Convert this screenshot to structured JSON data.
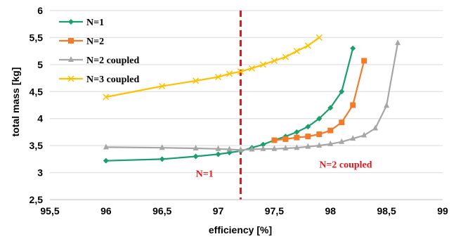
{
  "chart_data": {
    "type": "line",
    "xlabel": "efficiency [%]",
    "ylabel": "total mass [kg]",
    "xlim": [
      95.5,
      99
    ],
    "ylim": [
      2.5,
      6
    ],
    "xticks": [
      "95,5",
      "96",
      "96,5",
      "97",
      "97,5",
      "98",
      "98,5",
      "99"
    ],
    "yticks": [
      "2,5",
      "3",
      "3,5",
      "4",
      "4,5",
      "5",
      "5,5",
      "6"
    ],
    "grid": "horizontal",
    "legend_position": "top-left",
    "series": [
      {
        "name": "N=1",
        "color": "#1a9e6e",
        "marker": "diamond",
        "points": [
          [
            96.0,
            3.22
          ],
          [
            96.5,
            3.25
          ],
          [
            96.8,
            3.3
          ],
          [
            97.0,
            3.34
          ],
          [
            97.1,
            3.37
          ],
          [
            97.2,
            3.4
          ],
          [
            97.3,
            3.46
          ],
          [
            97.4,
            3.52
          ],
          [
            97.5,
            3.6
          ],
          [
            97.6,
            3.67
          ],
          [
            97.7,
            3.75
          ],
          [
            97.8,
            3.85
          ],
          [
            97.9,
            4.0
          ],
          [
            98.0,
            4.2
          ],
          [
            98.1,
            4.5
          ],
          [
            98.2,
            5.3
          ]
        ]
      },
      {
        "name": "N=2",
        "color": "#f07c2b",
        "marker": "square",
        "points": [
          [
            97.5,
            3.6
          ],
          [
            97.6,
            3.62
          ],
          [
            97.7,
            3.65
          ],
          [
            97.8,
            3.67
          ],
          [
            97.9,
            3.71
          ],
          [
            98.0,
            3.78
          ],
          [
            98.1,
            3.93
          ],
          [
            98.2,
            4.25
          ],
          [
            98.3,
            5.07
          ]
        ]
      },
      {
        "name": "N=2 coupled",
        "color": "#a6a6a6",
        "marker": "triangle",
        "points": [
          [
            96.0,
            3.47
          ],
          [
            96.5,
            3.46
          ],
          [
            96.8,
            3.45
          ],
          [
            97.0,
            3.44
          ],
          [
            97.1,
            3.43
          ],
          [
            97.2,
            3.42
          ],
          [
            97.3,
            3.43
          ],
          [
            97.4,
            3.44
          ],
          [
            97.5,
            3.44
          ],
          [
            97.6,
            3.45
          ],
          [
            97.7,
            3.46
          ],
          [
            97.8,
            3.48
          ],
          [
            97.9,
            3.5
          ],
          [
            98.0,
            3.53
          ],
          [
            98.1,
            3.57
          ],
          [
            98.2,
            3.63
          ],
          [
            98.3,
            3.69
          ],
          [
            98.4,
            3.82
          ],
          [
            98.5,
            4.24
          ],
          [
            98.6,
            5.4
          ]
        ]
      },
      {
        "name": "N=3 coupled",
        "color": "#ffc000",
        "marker": "x",
        "points": [
          [
            96.0,
            4.4
          ],
          [
            96.5,
            4.6
          ],
          [
            96.8,
            4.7
          ],
          [
            97.0,
            4.77
          ],
          [
            97.1,
            4.83
          ],
          [
            97.2,
            4.87
          ],
          [
            97.3,
            4.93
          ],
          [
            97.4,
            5.0
          ],
          [
            97.5,
            5.07
          ],
          [
            97.6,
            5.14
          ],
          [
            97.7,
            5.25
          ],
          [
            97.8,
            5.35
          ],
          [
            97.9,
            5.5
          ]
        ]
      }
    ],
    "vertical_line": {
      "x": 97.2,
      "color": "#e0191e",
      "style": "dashed"
    },
    "annotations": [
      {
        "text": "N=1",
        "color": "#e0191e",
        "x": 96.8,
        "y": 2.92
      },
      {
        "text": "N=2 coupled",
        "color": "#e0191e",
        "x": 97.9,
        "y": 3.09
      }
    ]
  }
}
